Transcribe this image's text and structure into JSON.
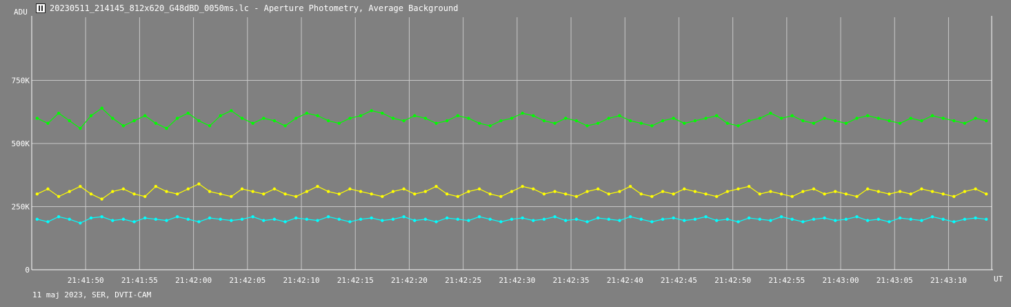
{
  "window": {
    "title": "20230511_214145_812x620_G48dBD_0050ms.lc - Aperture Photometry, Average Background",
    "icon": "lightcurve-app-icon"
  },
  "footer": {
    "info": "11 maj 2023, SER, DVTI-CAM"
  },
  "colors": {
    "background": "#808080",
    "grid": "#c8c8c8",
    "axis": "#ffffff",
    "series_green": "#00ff00",
    "series_yellow": "#ffff00",
    "series_cyan": "#00ffff"
  },
  "chart_data": {
    "type": "line",
    "ylabel": "ADU",
    "xlabel": "UT",
    "y_ticks": [
      {
        "value": 0,
        "label": "0"
      },
      {
        "value": 250000,
        "label": "250K"
      },
      {
        "value": 500000,
        "label": "500K"
      },
      {
        "value": 750000,
        "label": "750K"
      }
    ],
    "x_ticks": [
      {
        "value": 5,
        "label": "21:41:50"
      },
      {
        "value": 10,
        "label": "21:41:55"
      },
      {
        "value": 15,
        "label": "21:42:00"
      },
      {
        "value": 20,
        "label": "21:42:05"
      },
      {
        "value": 25,
        "label": "21:42:10"
      },
      {
        "value": 30,
        "label": "21:42:15"
      },
      {
        "value": 35,
        "label": "21:42:20"
      },
      {
        "value": 40,
        "label": "21:42:25"
      },
      {
        "value": 45,
        "label": "21:42:30"
      },
      {
        "value": 50,
        "label": "21:42:35"
      },
      {
        "value": 55,
        "label": "21:42:40"
      },
      {
        "value": 60,
        "label": "21:42:45"
      },
      {
        "value": 65,
        "label": "21:42:50"
      },
      {
        "value": 70,
        "label": "21:42:55"
      },
      {
        "value": 75,
        "label": "21:43:00"
      },
      {
        "value": 80,
        "label": "21:43:05"
      },
      {
        "value": 85,
        "label": "21:43:10"
      }
    ],
    "xlim": [
      0,
      89
    ],
    "ylim": [
      0,
      1000000
    ],
    "grid": true,
    "series": [
      {
        "color": "#00ff00",
        "values": [
          600000,
          580000,
          620000,
          590000,
          560000,
          610000,
          640000,
          600000,
          570000,
          590000,
          610000,
          580000,
          560000,
          600000,
          620000,
          590000,
          570000,
          610000,
          630000,
          600000,
          580000,
          600000,
          590000,
          570000,
          600000,
          620000,
          610000,
          590000,
          580000,
          600000,
          610000,
          630000,
          620000,
          600000,
          590000,
          610000,
          600000,
          580000,
          590000,
          610000,
          600000,
          580000,
          570000,
          590000,
          600000,
          620000,
          610000,
          590000,
          580000,
          600000,
          590000,
          570000,
          580000,
          600000,
          610000,
          590000,
          580000,
          570000,
          590000,
          600000,
          580000,
          590000,
          600000,
          610000,
          580000,
          570000,
          590000,
          600000,
          620000,
          600000,
          610000,
          590000,
          580000,
          600000,
          590000,
          580000,
          600000,
          610000,
          600000,
          590000,
          580000,
          600000,
          590000,
          610000,
          600000,
          590000,
          580000,
          600000,
          590000
        ]
      },
      {
        "color": "#ffff00",
        "values": [
          300000,
          320000,
          290000,
          310000,
          330000,
          300000,
          280000,
          310000,
          320000,
          300000,
          290000,
          330000,
          310000,
          300000,
          320000,
          340000,
          310000,
          300000,
          290000,
          320000,
          310000,
          300000,
          320000,
          300000,
          290000,
          310000,
          330000,
          310000,
          300000,
          320000,
          310000,
          300000,
          290000,
          310000,
          320000,
          300000,
          310000,
          330000,
          300000,
          290000,
          310000,
          320000,
          300000,
          290000,
          310000,
          330000,
          320000,
          300000,
          310000,
          300000,
          290000,
          310000,
          320000,
          300000,
          310000,
          330000,
          300000,
          290000,
          310000,
          300000,
          320000,
          310000,
          300000,
          290000,
          310000,
          320000,
          330000,
          300000,
          310000,
          300000,
          290000,
          310000,
          320000,
          300000,
          310000,
          300000,
          290000,
          320000,
          310000,
          300000,
          310000,
          300000,
          320000,
          310000,
          300000,
          290000,
          310000,
          320000,
          300000
        ]
      },
      {
        "color": "#00ffff",
        "values": [
          200000,
          190000,
          210000,
          200000,
          185000,
          205000,
          210000,
          195000,
          200000,
          190000,
          205000,
          200000,
          195000,
          210000,
          200000,
          190000,
          205000,
          200000,
          195000,
          200000,
          210000,
          195000,
          200000,
          190000,
          205000,
          200000,
          195000,
          210000,
          200000,
          190000,
          200000,
          205000,
          195000,
          200000,
          210000,
          195000,
          200000,
          190000,
          205000,
          200000,
          195000,
          210000,
          200000,
          190000,
          200000,
          205000,
          195000,
          200000,
          210000,
          195000,
          200000,
          190000,
          205000,
          200000,
          195000,
          210000,
          200000,
          190000,
          200000,
          205000,
          195000,
          200000,
          210000,
          195000,
          200000,
          190000,
          205000,
          200000,
          195000,
          210000,
          200000,
          190000,
          200000,
          205000,
          195000,
          200000,
          210000,
          195000,
          200000,
          190000,
          205000,
          200000,
          195000,
          210000,
          200000,
          190000,
          200000,
          205000,
          200000
        ]
      }
    ]
  }
}
